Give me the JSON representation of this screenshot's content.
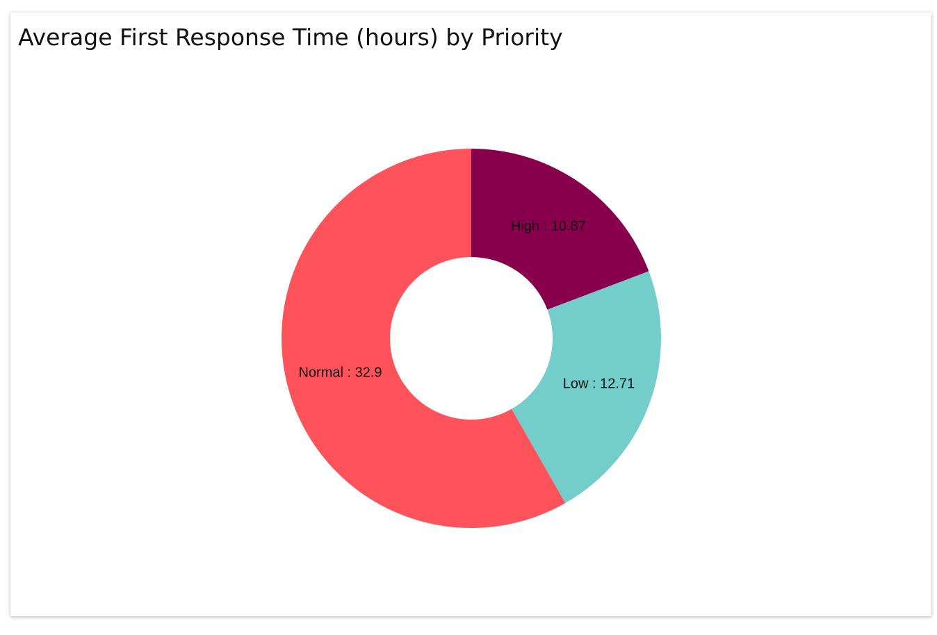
{
  "chart_data": {
    "type": "donut",
    "title": "Average First Response Time (hours) by Priority",
    "categories": [
      "High",
      "Low",
      "Normal"
    ],
    "values": [
      10.87,
      12.71,
      32.9
    ],
    "value_labels": [
      "High : 10.87",
      "Low : 12.71",
      "Normal : 32.9"
    ],
    "colors": [
      "#88004b",
      "#73cdcb",
      "#ff535c"
    ]
  }
}
